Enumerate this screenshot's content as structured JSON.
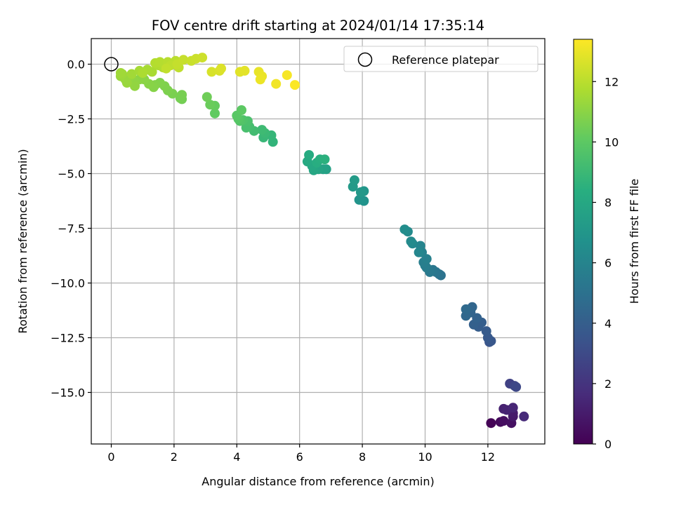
{
  "chart_data": {
    "type": "scatter",
    "title": "FOV centre drift starting at 2024/01/14 17:35:14",
    "xlabel": "Angular distance from reference (arcmin)",
    "ylabel": "Rotation from reference (arcmin)",
    "xlim": [
      -0.65,
      13.8
    ],
    "ylim": [
      -17.5,
      1.2
    ],
    "x_ticks": [
      0,
      2,
      4,
      6,
      8,
      10,
      12
    ],
    "y_ticks": [
      0.0,
      -2.5,
      -5.0,
      -7.5,
      -10.0,
      -12.5,
      -15.0
    ],
    "x_tick_labels": [
      "0",
      "2",
      "4",
      "6",
      "8",
      "10",
      "12"
    ],
    "y_tick_labels": [
      "0.0",
      "−2.5",
      "−5.0",
      "−7.5",
      "−10.0",
      "−12.5",
      "−15.0"
    ],
    "grid": true,
    "legend": {
      "position": "top-right",
      "entries": [
        {
          "label": "Reference platepar",
          "marker": "open-circle",
          "x": 0,
          "y": 0
        }
      ]
    },
    "colorbar": {
      "label": "Hours from first FF file",
      "range": [
        0,
        13.4
      ],
      "ticks": [
        0,
        2,
        4,
        6,
        8,
        10,
        12
      ],
      "tick_labels": [
        "0",
        "2",
        "4",
        "6",
        "8",
        "10",
        "12"
      ],
      "colormap": "viridis"
    },
    "columns": [
      "x",
      "y",
      "hours"
    ],
    "points": [
      [
        12.1,
        -16.4,
        0.1
      ],
      [
        12.4,
        -16.35,
        0.3
      ],
      [
        12.5,
        -16.3,
        0.5
      ],
      [
        12.75,
        -16.4,
        0.6
      ],
      [
        12.8,
        -16.1,
        0.9
      ],
      [
        12.8,
        -15.95,
        1.0
      ],
      [
        12.5,
        -15.75,
        1.2
      ],
      [
        12.6,
        -15.8,
        1.3
      ],
      [
        12.8,
        -15.7,
        1.4
      ],
      [
        13.15,
        -16.1,
        1.6
      ],
      [
        12.7,
        -14.6,
        2.6
      ],
      [
        12.85,
        -14.7,
        2.8
      ],
      [
        12.9,
        -14.75,
        2.9
      ],
      [
        12.05,
        -12.7,
        3.5
      ],
      [
        12.1,
        -12.65,
        3.6
      ],
      [
        12.0,
        -12.5,
        3.7
      ],
      [
        11.95,
        -12.2,
        3.8
      ],
      [
        11.7,
        -12.0,
        3.9
      ],
      [
        11.8,
        -11.8,
        4.0
      ],
      [
        11.55,
        -11.9,
        4.1
      ],
      [
        11.65,
        -11.6,
        4.2
      ],
      [
        11.45,
        -11.35,
        4.3
      ],
      [
        11.5,
        -11.1,
        4.4
      ],
      [
        11.3,
        -11.5,
        4.5
      ],
      [
        11.3,
        -11.2,
        4.6
      ],
      [
        10.5,
        -9.65,
        5.0
      ],
      [
        10.45,
        -9.6,
        5.1
      ],
      [
        10.35,
        -9.5,
        5.2
      ],
      [
        10.25,
        -9.4,
        5.3
      ],
      [
        10.15,
        -9.5,
        5.4
      ],
      [
        10.05,
        -9.3,
        5.5
      ],
      [
        10.0,
        -9.2,
        5.6
      ],
      [
        9.95,
        -9.05,
        5.7
      ],
      [
        10.05,
        -8.9,
        5.8
      ],
      [
        9.9,
        -8.6,
        5.9
      ],
      [
        9.85,
        -8.3,
        6.0
      ],
      [
        9.8,
        -8.6,
        6.1
      ],
      [
        9.6,
        -8.2,
        6.2
      ],
      [
        9.55,
        -8.1,
        6.3
      ],
      [
        9.45,
        -7.65,
        6.4
      ],
      [
        9.35,
        -7.55,
        6.5
      ],
      [
        8.05,
        -6.25,
        6.8
      ],
      [
        7.9,
        -6.2,
        6.9
      ],
      [
        8.05,
        -5.8,
        7.0
      ],
      [
        7.95,
        -5.85,
        7.1
      ],
      [
        7.7,
        -5.6,
        7.2
      ],
      [
        7.75,
        -5.3,
        7.3
      ],
      [
        6.85,
        -4.8,
        7.6
      ],
      [
        6.75,
        -4.8,
        7.7
      ],
      [
        6.6,
        -4.8,
        7.8
      ],
      [
        6.45,
        -4.85,
        7.9
      ],
      [
        6.4,
        -4.65,
        8.0
      ],
      [
        6.25,
        -4.45,
        8.1
      ],
      [
        6.3,
        -4.15,
        8.2
      ],
      [
        6.55,
        -4.5,
        8.3
      ],
      [
        6.65,
        -4.35,
        8.4
      ],
      [
        6.8,
        -4.35,
        8.5
      ],
      [
        5.15,
        -3.55,
        8.7
      ],
      [
        5.1,
        -3.25,
        8.8
      ],
      [
        4.85,
        -3.35,
        8.9
      ],
      [
        4.9,
        -3.15,
        9.0
      ],
      [
        4.8,
        -3.0,
        9.1
      ],
      [
        4.55,
        -3.05,
        9.2
      ],
      [
        4.4,
        -2.85,
        9.3
      ],
      [
        4.3,
        -2.9,
        9.4
      ],
      [
        4.35,
        -2.6,
        9.5
      ],
      [
        4.2,
        -2.55,
        9.6
      ],
      [
        4.1,
        -2.6,
        9.7
      ],
      [
        4.05,
        -2.5,
        9.8
      ],
      [
        4.0,
        -2.35,
        9.9
      ],
      [
        4.15,
        -2.1,
        10.0
      ],
      [
        3.3,
        -2.25,
        10.1
      ],
      [
        3.3,
        -1.9,
        10.2
      ],
      [
        3.15,
        -1.85,
        10.3
      ],
      [
        3.05,
        -1.5,
        10.4
      ],
      [
        2.25,
        -1.6,
        10.5
      ],
      [
        2.2,
        -1.55,
        10.55
      ],
      [
        2.25,
        -1.4,
        10.6
      ],
      [
        1.95,
        -1.35,
        10.65
      ],
      [
        1.8,
        -1.2,
        10.7
      ],
      [
        1.7,
        -1.0,
        10.75
      ],
      [
        1.55,
        -0.85,
        10.8
      ],
      [
        1.4,
        -0.95,
        10.85
      ],
      [
        1.35,
        -1.05,
        10.9
      ],
      [
        1.2,
        -0.9,
        10.95
      ],
      [
        1.05,
        -0.7,
        11.0
      ],
      [
        0.9,
        -0.7,
        11.05
      ],
      [
        0.75,
        -0.8,
        11.1
      ],
      [
        0.75,
        -1.0,
        11.15
      ],
      [
        0.6,
        -0.55,
        11.2
      ],
      [
        0.45,
        -0.7,
        11.25
      ],
      [
        0.5,
        -0.85,
        11.3
      ],
      [
        0.3,
        -0.55,
        11.35
      ],
      [
        0.35,
        -0.45,
        11.4
      ],
      [
        0.3,
        -0.4,
        11.45
      ],
      [
        0.65,
        -0.45,
        11.5
      ],
      [
        0.9,
        -0.3,
        11.55
      ],
      [
        1.15,
        -0.25,
        11.6
      ],
      [
        1.3,
        -0.35,
        11.65
      ],
      [
        1.0,
        -0.4,
        11.7
      ],
      [
        1.5,
        -0.05,
        11.75
      ],
      [
        1.65,
        -0.15,
        11.8
      ],
      [
        1.4,
        0.05,
        11.85
      ],
      [
        1.55,
        0.1,
        11.9
      ],
      [
        1.8,
        0.1,
        11.95
      ],
      [
        2.05,
        0.15,
        12.0
      ],
      [
        1.9,
        -0.05,
        12.05
      ],
      [
        2.15,
        -0.15,
        12.1
      ],
      [
        1.75,
        -0.2,
        12.15
      ],
      [
        2.1,
        0.0,
        12.2
      ],
      [
        2.3,
        0.2,
        12.25
      ],
      [
        2.55,
        0.15,
        12.3
      ],
      [
        2.7,
        0.25,
        12.35
      ],
      [
        2.9,
        0.3,
        12.4
      ],
      [
        3.2,
        -0.35,
        12.6
      ],
      [
        3.45,
        -0.3,
        12.65
      ],
      [
        3.5,
        -0.2,
        12.7
      ],
      [
        4.1,
        -0.35,
        12.8
      ],
      [
        4.25,
        -0.3,
        12.85
      ],
      [
        4.7,
        -0.35,
        12.95
      ],
      [
        4.8,
        -0.55,
        13.0
      ],
      [
        4.75,
        -0.7,
        13.05
      ],
      [
        5.25,
        -0.9,
        13.15
      ],
      [
        5.6,
        -0.5,
        13.25
      ],
      [
        5.85,
        -0.95,
        13.35
      ]
    ]
  }
}
